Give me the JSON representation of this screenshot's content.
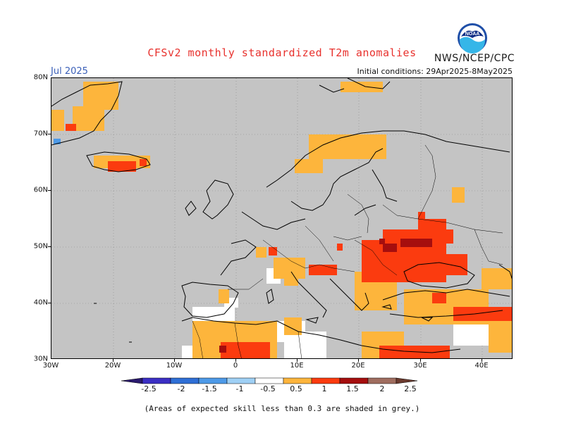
{
  "header": {
    "title": "CFSv2 monthly standardized T2m anomalies",
    "agency": "NWS/NCEP/CPC",
    "logo_text": "NOAA",
    "month": "Jul 2025",
    "initial_conditions": "Initial conditions: 29Apr2025-8May2025"
  },
  "map": {
    "region": "Europe",
    "lon_range": [
      -30,
      45
    ],
    "lat_range": [
      30,
      80
    ],
    "lat_labels": [
      "80N",
      "70N",
      "60N",
      "50N",
      "40N",
      "30N"
    ],
    "lon_labels": [
      "30W",
      "20W",
      "10W",
      "0",
      "10E",
      "20E",
      "30E",
      "40E"
    ],
    "grey_color": "#c4c4c4",
    "land_color": "#ffffff"
  },
  "legend": {
    "labels": [
      "-2.5",
      "-2",
      "-1.5",
      "-1",
      "-0.5",
      "0.5",
      "1",
      "1.5",
      "2",
      "2.5"
    ],
    "colors": {
      "below_-2.5": "#2a1a6e",
      "-2.5_-2": "#3b2fc4",
      "-2_-1.5": "#2f6fd6",
      "-1.5_-1": "#4d9ae8",
      "-1_-0.5": "#9fd0f5",
      "-0.5_0.5": "#ffffff",
      "0.5_1": "#fdb53c",
      "1_1.5": "#fb3b0f",
      "1.5_2": "#a50e0e",
      "2_2.5": "#a06d5f",
      "above_2.5": "#6b3a2e"
    }
  },
  "footer": {
    "note": "(Areas of expected skill less than 0.3 are shaded in grey.)"
  }
}
